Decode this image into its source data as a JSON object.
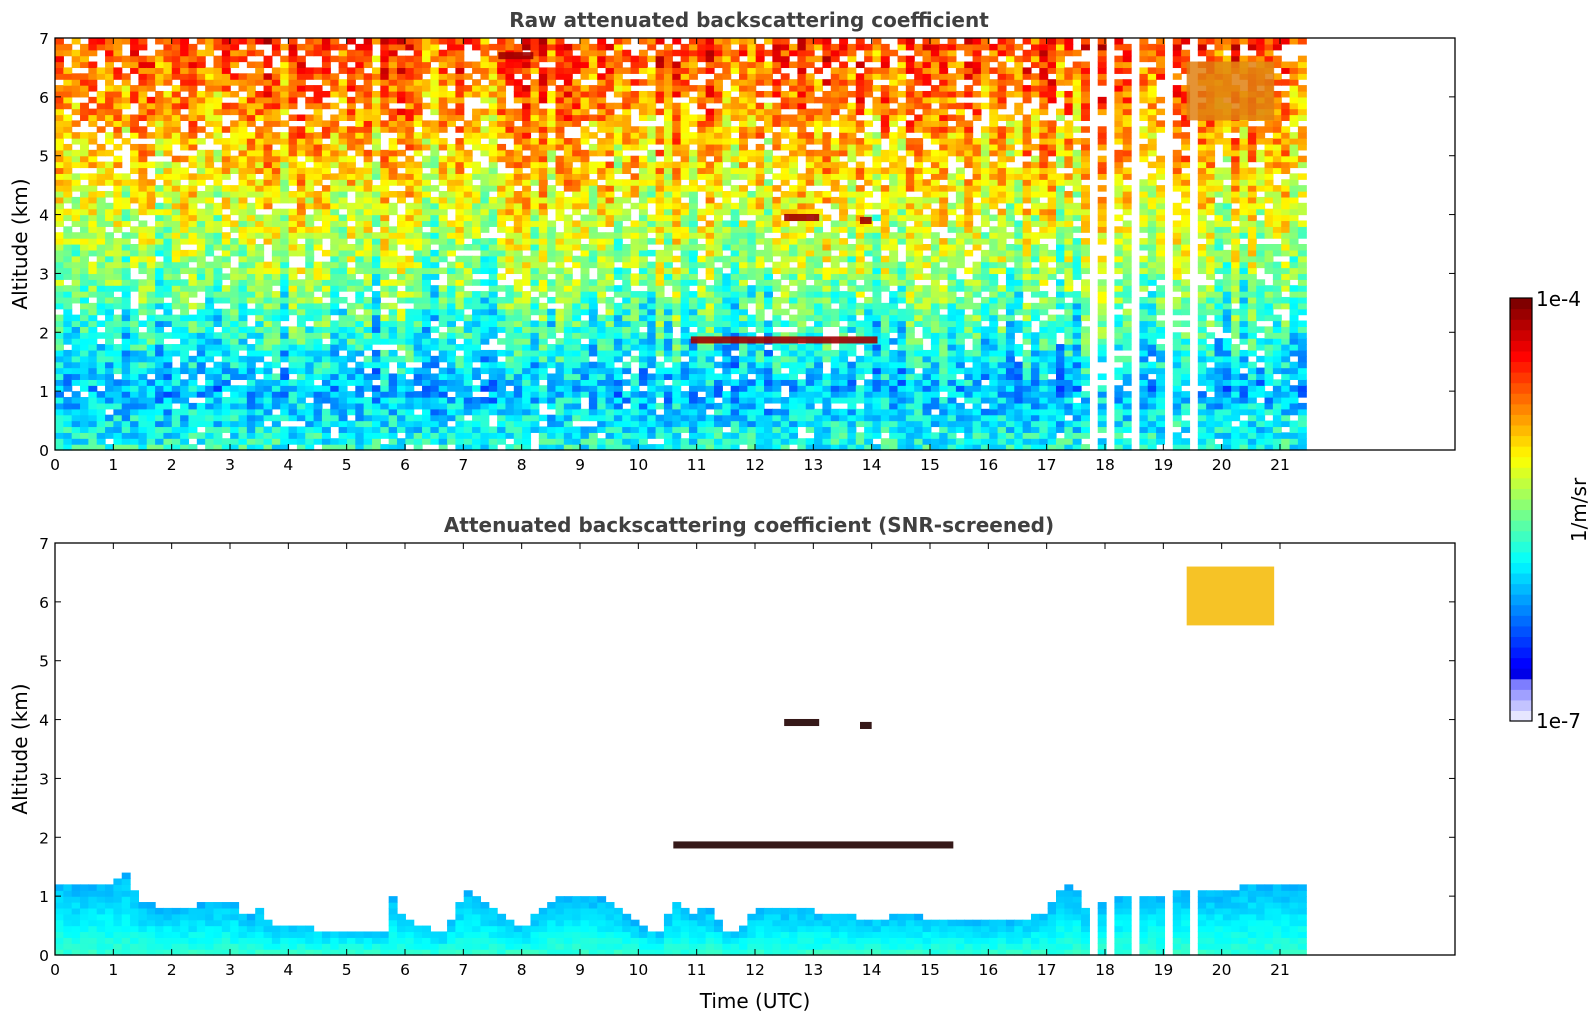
{
  "figure": {
    "colorbar": {
      "min_label": "1e-7",
      "max_label": "1e-4",
      "unit_label": "1/m/sr",
      "colormap": "jet",
      "scale": "log",
      "position": "right"
    },
    "xlabel": "Time (UTC)"
  },
  "chart_data": [
    {
      "type": "heatmap",
      "title": "Raw attenuated backscattering coefficient",
      "xlabel": "",
      "ylabel": "Altitude (km)",
      "xlim": [
        0,
        24
      ],
      "ylim": [
        0,
        7
      ],
      "x_ticks": [
        0,
        1,
        2,
        3,
        4,
        5,
        6,
        7,
        8,
        9,
        10,
        11,
        12,
        13,
        14,
        15,
        16,
        17,
        18,
        19,
        20,
        21
      ],
      "y_ticks": [
        0,
        1,
        2,
        3,
        4,
        5,
        6,
        7
      ],
      "data_end_time": 21.45,
      "colorscale": {
        "min": 1e-07,
        "max": 0.0001,
        "log": true
      },
      "values_note_profile": [
        {
          "altitude": 0.1,
          "log10_beta": -5.8
        },
        {
          "altitude": 1.0,
          "log10_beta": -6.1
        },
        {
          "altitude": 3.0,
          "log10_beta": -5.5
        },
        {
          "altitude": 5.0,
          "log10_beta": -5.0
        },
        {
          "altitude": 7.0,
          "log10_beta": -4.6
        }
      ],
      "features": [
        {
          "label": "cloud",
          "x": [
            12.5,
            13.1
          ],
          "altitude": 3.95
        },
        {
          "label": "cloud",
          "x": [
            13.8,
            14.0
          ],
          "altitude": 3.9
        },
        {
          "label": "cloud",
          "x": [
            10.9,
            14.1
          ],
          "altitude": 1.87
        },
        {
          "label": "cirrus",
          "x": [
            19.4,
            20.9
          ],
          "altitude": [
            5.6,
            6.6
          ]
        },
        {
          "label": "cloud",
          "x": [
            7.6,
            8.2
          ],
          "altitude": 6.7
        }
      ],
      "gaps": [
        17.78,
        18.1,
        18.48,
        18.53,
        19.02,
        19.1,
        19.47
      ]
    },
    {
      "type": "heatmap",
      "title": "Attenuated backscattering coefficient (SNR-screened)",
      "xlabel": "Time (UTC)",
      "ylabel": "Altitude (km)",
      "xlim": [
        0,
        24
      ],
      "ylim": [
        0,
        7
      ],
      "x_ticks": [
        0,
        1,
        2,
        3,
        4,
        5,
        6,
        7,
        8,
        9,
        10,
        11,
        12,
        13,
        14,
        15,
        16,
        17,
        18,
        19,
        20,
        21
      ],
      "y_ticks": [
        0,
        1,
        2,
        3,
        4,
        5,
        6,
        7
      ],
      "data_end_time": 21.45,
      "colorscale": {
        "min": 1e-07,
        "max": 0.0001,
        "log": true
      },
      "boundary_layer_top_km": [
        [
          0.0,
          1.25
        ],
        [
          0.5,
          1.15
        ],
        [
          1.0,
          1.25
        ],
        [
          1.2,
          1.4
        ],
        [
          1.5,
          0.9
        ],
        [
          2.0,
          0.75
        ],
        [
          2.5,
          0.85
        ],
        [
          3.0,
          0.95
        ],
        [
          3.3,
          0.6
        ],
        [
          3.5,
          0.8
        ],
        [
          3.8,
          0.45
        ],
        [
          4.2,
          0.55
        ],
        [
          4.5,
          0.45
        ],
        [
          4.8,
          0.4
        ],
        [
          5.3,
          0.45
        ],
        [
          5.7,
          0.35
        ],
        [
          5.8,
          1.05
        ],
        [
          6.0,
          0.6
        ],
        [
          6.3,
          0.5
        ],
        [
          6.7,
          0.35
        ],
        [
          7.0,
          1.1
        ],
        [
          7.5,
          0.85
        ],
        [
          8.0,
          0.4
        ],
        [
          8.3,
          0.8
        ],
        [
          8.6,
          1.0
        ],
        [
          9.0,
          1.05
        ],
        [
          9.5,
          0.95
        ],
        [
          10.0,
          0.5
        ],
        [
          10.4,
          0.35
        ],
        [
          10.6,
          1.0
        ],
        [
          10.9,
          0.7
        ],
        [
          11.2,
          0.85
        ],
        [
          11.5,
          0.35
        ],
        [
          11.8,
          0.5
        ],
        [
          12.0,
          0.85
        ],
        [
          12.5,
          0.8
        ],
        [
          13.0,
          0.75
        ],
        [
          13.5,
          0.7
        ],
        [
          14.0,
          0.6
        ],
        [
          14.5,
          0.7
        ],
        [
          15.0,
          0.62
        ],
        [
          15.5,
          0.58
        ],
        [
          16.0,
          0.55
        ],
        [
          16.5,
          0.6
        ],
        [
          17.0,
          0.7
        ],
        [
          17.3,
          1.25
        ],
        [
          17.6,
          1.0
        ],
        [
          17.8,
          0.4
        ],
        [
          18.0,
          1.05
        ],
        [
          18.5,
          1.0
        ],
        [
          19.0,
          1.05
        ],
        [
          19.5,
          1.1
        ],
        [
          20.0,
          1.05
        ],
        [
          20.5,
          1.2
        ],
        [
          21.0,
          1.2
        ],
        [
          21.45,
          1.15
        ]
      ],
      "features": [
        {
          "label": "cloud",
          "x": [
            12.5,
            13.1
          ],
          "altitude": 3.95
        },
        {
          "label": "cloud",
          "x": [
            13.8,
            14.0
          ],
          "altitude": 3.9
        },
        {
          "label": "cloud",
          "x": [
            10.6,
            15.4
          ],
          "altitude": 1.87
        },
        {
          "label": "cirrus",
          "x": [
            19.4,
            20.9
          ],
          "altitude": [
            5.6,
            6.6
          ]
        }
      ],
      "gaps": [
        17.78,
        18.1,
        18.48,
        18.53,
        19.02,
        19.1,
        19.47
      ]
    }
  ]
}
